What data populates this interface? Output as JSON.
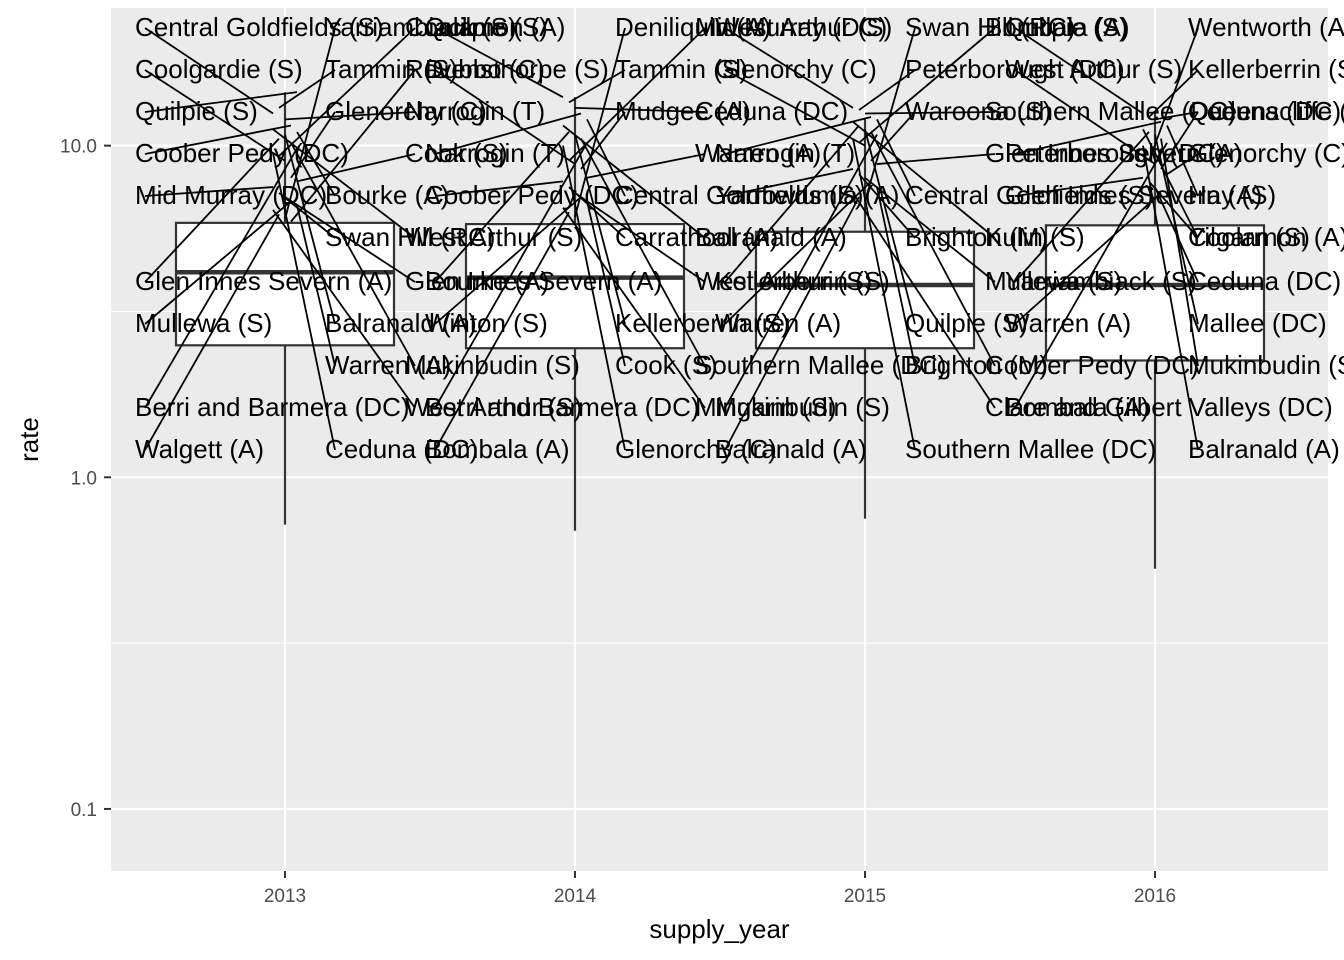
{
  "colors": {
    "panel": "#ebebeb",
    "grid_major": "#ffffff",
    "box_fill": "#ffffff",
    "box_line": "#333333",
    "label_text": "#000000",
    "segment": "#000000",
    "tick_text": "#4d4d4d"
  },
  "chart_data": {
    "type": "boxplot",
    "title": "",
    "xlabel": "supply_year",
    "ylabel": "rate",
    "yscale": "log10",
    "ylim": [
      0.065,
      26
    ],
    "y_breaks": [
      0.1,
      1.0,
      10.0
    ],
    "y_tick_labels": [
      "0.1",
      "1.0",
      "10.0"
    ],
    "categories": [
      "2013",
      "2014",
      "2015",
      "2016"
    ],
    "boxes": [
      {
        "year": "2013",
        "lower_whisker": 0.72,
        "q1": 2.5,
        "median": 4.15,
        "q3": 5.85,
        "upper_whisker": 14.5
      },
      {
        "year": "2014",
        "lower_whisker": 0.69,
        "q1": 2.45,
        "median": 4.0,
        "q3": 5.8,
        "upper_whisker": 14.0
      },
      {
        "year": "2015",
        "lower_whisker": 0.75,
        "q1": 2.45,
        "median": 3.8,
        "q3": 5.5,
        "upper_whisker": 12.0
      },
      {
        "year": "2016",
        "lower_whisker": 0.53,
        "q1": 2.25,
        "median": 3.8,
        "q3": 5.75,
        "upper_whisker": 12.5
      }
    ],
    "labels": [
      {
        "year": "2013",
        "text": "Central Goldfields (S)",
        "value": 12.5
      },
      {
        "year": "2013",
        "text": "Tammin (S)",
        "value": 13.0
      },
      {
        "year": "2013",
        "text": "Narrogin (T)",
        "value": 12.0
      },
      {
        "year": "2013",
        "text": "Coober Pedy (DC)",
        "value": 11.5
      },
      {
        "year": "2013",
        "text": "Bourke (A)",
        "value": 11.0
      },
      {
        "year": "2013",
        "text": "West Arthur (S)",
        "value": 11.2
      },
      {
        "year": "2013",
        "text": "Glen Innes Severn (A)",
        "value": 10.5
      },
      {
        "year": "2013",
        "text": "Balranald (A)",
        "value": 10.8
      },
      {
        "year": "2013",
        "text": "Mukinbudin (S)",
        "value": 10.2
      },
      {
        "year": "2013",
        "text": "Berri and Barmera (DC)",
        "value": 9.8
      },
      {
        "year": "2013",
        "text": "Ceduna (DC)",
        "value": 9.5
      },
      {
        "year": "2013",
        "text": "Coolamon (A)",
        "value": 9.3
      },
      {
        "year": "2013",
        "text": "Coolgardie (S)",
        "value": 9.0
      },
      {
        "year": "2013",
        "text": "Glenorchy (C)",
        "value": 8.0
      },
      {
        "year": "2013",
        "text": "Cook (S)",
        "value": 7.8
      },
      {
        "year": "2013",
        "text": "Mid Murray (DC)",
        "value": 7.5
      },
      {
        "year": "2013",
        "text": "Swan Hill (RC)",
        "value": 7.2
      },
      {
        "year": "2013",
        "text": "Glen Innes Severn (A)",
        "value": 7.0
      },
      {
        "year": "2013",
        "text": "Mullewa (S)",
        "value": 6.8
      },
      {
        "year": "2013",
        "text": "Warren (A)",
        "value": 6.6
      },
      {
        "year": "2013",
        "text": "West Arthur (S)",
        "value": 6.4
      },
      {
        "year": "2013",
        "text": "Walgett (A)",
        "value": 6.2
      },
      {
        "year": "2013",
        "text": "Yarriambiack (S)",
        "value": 6.0
      },
      {
        "year": "2013",
        "text": "Ravensthorpe (S)",
        "value": 5.9
      },
      {
        "year": "2013",
        "text": "Quilpie (S)",
        "value": 14.5
      },
      {
        "year": "2014",
        "text": "Quilpie (S)",
        "value": 14.0
      },
      {
        "year": "2014",
        "text": "Tammin (S)",
        "value": 13.5
      },
      {
        "year": "2014",
        "text": "Ceduna (DC)",
        "value": 13.0
      },
      {
        "year": "2014",
        "text": "Narrogin (T)",
        "value": 12.5
      },
      {
        "year": "2014",
        "text": "Central Goldfields (S)",
        "value": 12.0
      },
      {
        "year": "2014",
        "text": "Balranald (A)",
        "value": 11.5
      },
      {
        "year": "2014",
        "text": "Bourke (A)",
        "value": 11.0
      },
      {
        "year": "2014",
        "text": "Kellerberrin (S)",
        "value": 10.8
      },
      {
        "year": "2014",
        "text": "Southern Mallee (DC)",
        "value": 10.5
      },
      {
        "year": "2014",
        "text": "Berri and Barmera (DC)",
        "value": 10.2
      },
      {
        "year": "2014",
        "text": "Glenorchy (C)",
        "value": 10.0
      },
      {
        "year": "2014",
        "text": "Mid Murray (DC)",
        "value": 9.0
      },
      {
        "year": "2014",
        "text": "Dubbo (C)",
        "value": 8.8
      },
      {
        "year": "2014",
        "text": "Mudgee (A)",
        "value": 8.5
      },
      {
        "year": "2014",
        "text": "Warren (A)",
        "value": 8.0
      },
      {
        "year": "2014",
        "text": "Coober Pedy (DC)",
        "value": 7.8
      },
      {
        "year": "2014",
        "text": "Carrathool (A)",
        "value": 7.5
      },
      {
        "year": "2014",
        "text": "West Arthur (S)",
        "value": 7.2
      },
      {
        "year": "2014",
        "text": "Winton (S)",
        "value": 7.0
      },
      {
        "year": "2014",
        "text": "Cook (S)",
        "value": 6.8
      },
      {
        "year": "2014",
        "text": "Mingarin (S)",
        "value": 6.5
      },
      {
        "year": "2014",
        "text": "Bombala (A)",
        "value": 6.3
      },
      {
        "year": "2014",
        "text": "Deniliquin (A)",
        "value": 6.1
      },
      {
        "year": "2015",
        "text": "West Arthur (S)",
        "value": 13.0
      },
      {
        "year": "2015",
        "text": "Peterborough (DC)",
        "value": 12.8
      },
      {
        "year": "2015",
        "text": "Southern Mallee (DC)",
        "value": 12.5
      },
      {
        "year": "2015",
        "text": "Narrogin (T)",
        "value": 12.2
      },
      {
        "year": "2015",
        "text": "Central Goldfields (S)",
        "value": 12.0
      },
      {
        "year": "2015",
        "text": "Kulin (S)",
        "value": 11.8
      },
      {
        "year": "2015",
        "text": "Kellerberrin (S)",
        "value": 11.5
      },
      {
        "year": "2015",
        "text": "Quilpie (S)",
        "value": 11.2
      },
      {
        "year": "2015",
        "text": "Coober Pedy (DC)",
        "value": 11.0
      },
      {
        "year": "2015",
        "text": "Mukinbudin (S)",
        "value": 10.8
      },
      {
        "year": "2015",
        "text": "Southern Mallee (DC)",
        "value": 10.5
      },
      {
        "year": "2015",
        "text": "Bombala (A)",
        "value": 10.2
      },
      {
        "year": "2015",
        "text": "Glenorchy (C)",
        "value": 10.0
      },
      {
        "year": "2015",
        "text": "Waroona (S)",
        "value": 9.0
      },
      {
        "year": "2015",
        "text": "Glen Innes Severn (A)",
        "value": 8.8
      },
      {
        "year": "2015",
        "text": "Yarrowlumla (A)",
        "value": 8.5
      },
      {
        "year": "2015",
        "text": "Brighton (M)",
        "value": 8.2
      },
      {
        "year": "2015",
        "text": "Mullewa (S)",
        "value": 8.0
      },
      {
        "year": "2015",
        "text": "Warren (A)",
        "value": 7.8
      },
      {
        "year": "2015",
        "text": "Brighton (M)",
        "value": 7.5
      },
      {
        "year": "2015",
        "text": "Clare and Gilbert Valleys (DC)",
        "value": 7.2
      },
      {
        "year": "2015",
        "text": "Balranald (A)",
        "value": 7.0
      },
      {
        "year": "2015",
        "text": "Swan Hill (RC)",
        "value": 6.8
      },
      {
        "year": "2016",
        "text": "Quilpie (S)",
        "value": 12.5
      },
      {
        "year": "2016",
        "text": "Kellerberrin (S)",
        "value": 12.2
      },
      {
        "year": "2016",
        "text": "Ceduna (DC)",
        "value": 12.0
      },
      {
        "year": "2016",
        "text": "Peterborough (DC)",
        "value": 11.8
      },
      {
        "year": "2016",
        "text": "Hay (S)",
        "value": 11.5
      },
      {
        "year": "2016",
        "text": "Yilgarn (S)",
        "value": 11.2
      },
      {
        "year": "2016",
        "text": "Yarriambiack (S)",
        "value": 11.0
      },
      {
        "year": "2016",
        "text": "Mallee (DC)",
        "value": 10.8
      },
      {
        "year": "2016",
        "text": "Mukinbudin (S)",
        "value": 10.5
      },
      {
        "year": "2016",
        "text": "Bombala (A)",
        "value": 10.2
      },
      {
        "year": "2016",
        "text": "Balranald (A)",
        "value": 10.0
      },
      {
        "year": "2016",
        "text": "Wentworth (A)",
        "value": 9.0
      },
      {
        "year": "2016",
        "text": "West Arthur (S)",
        "value": 8.8
      },
      {
        "year": "2016",
        "text": "Queenscliffe (B)",
        "value": 8.5
      },
      {
        "year": "2016",
        "text": "Glenorchy (C)",
        "value": 8.2
      },
      {
        "year": "2016",
        "text": "Glen Innes Severn (A)",
        "value": 8.0
      },
      {
        "year": "2016",
        "text": "Coolamon (A)",
        "value": 7.8
      },
      {
        "year": "2016",
        "text": "Ceduna (DC)",
        "value": 7.5
      },
      {
        "year": "2016",
        "text": "Warren (A)",
        "value": 7.2
      }
    ]
  }
}
